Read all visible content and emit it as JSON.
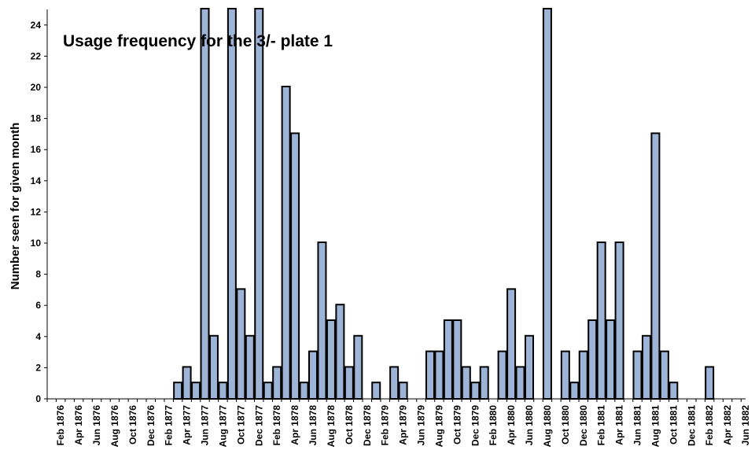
{
  "chart_data": {
    "type": "bar",
    "title": "Usage frequency for the 3/- plate 1",
    "xlabel": "",
    "ylabel": "Number seen for given month",
    "ylim": [
      0,
      25
    ],
    "yticks": [
      0,
      2,
      4,
      6,
      8,
      10,
      12,
      14,
      16,
      18,
      20,
      22,
      24
    ],
    "grid": false,
    "legend": "none",
    "bar_color": "#9db4d6",
    "months": [
      "Jan 1876",
      "Feb 1876",
      "Mar 1876",
      "Apr 1876",
      "May 1876",
      "Jun 1876",
      "Jul 1876",
      "Aug 1876",
      "Sep 1876",
      "Oct 1876",
      "Nov 1876",
      "Dec 1876",
      "Jan 1877",
      "Feb 1877",
      "Mar 1877",
      "Apr 1877",
      "May 1877",
      "Jun 1877",
      "Jul 1877",
      "Aug 1877",
      "Sep 1877",
      "Oct 1877",
      "Nov 1877",
      "Dec 1877",
      "Jan 1878",
      "Feb 1878",
      "Mar 1878",
      "Apr 1878",
      "May 1878",
      "Jun 1878",
      "Jul 1878",
      "Aug 1878",
      "Sep 1878",
      "Oct 1878",
      "Nov 1878",
      "Dec 1878",
      "Jan 1879",
      "Feb 1879",
      "Mar 1879",
      "Apr 1879",
      "May 1879",
      "Jun 1879",
      "Jul 1879",
      "Aug 1879",
      "Sep 1879",
      "Oct 1879",
      "Nov 1879",
      "Dec 1879",
      "Jan 1880",
      "Feb 1880",
      "Mar 1880",
      "Apr 1880",
      "May 1880",
      "Jun 1880",
      "Jul 1880",
      "Aug 1880",
      "Sep 1880",
      "Oct 1880",
      "Nov 1880",
      "Dec 1880",
      "Jan 1881",
      "Feb 1881",
      "Mar 1881",
      "Apr 1881",
      "May 1881",
      "Jun 1881",
      "Jul 1881",
      "Aug 1881",
      "Sep 1881",
      "Oct 1881",
      "Nov 1881",
      "Dec 1881",
      "Jan 1882",
      "Feb 1882",
      "Mar 1882",
      "Apr 1882",
      "May 1882",
      "Jun 1882"
    ],
    "values": [
      0,
      0,
      0,
      0,
      0,
      0,
      0,
      0,
      0,
      0,
      0,
      0,
      0,
      0,
      1,
      2,
      1,
      25,
      4,
      1,
      25,
      7,
      4,
      25,
      1,
      2,
      20,
      17,
      1,
      3,
      10,
      5,
      6,
      2,
      4,
      0,
      1,
      0,
      2,
      1,
      0,
      0,
      3,
      3,
      5,
      5,
      2,
      1,
      2,
      0,
      3,
      7,
      2,
      4,
      0,
      25,
      0,
      3,
      1,
      3,
      5,
      10,
      5,
      10,
      0,
      3,
      4,
      17,
      3,
      1,
      0,
      0,
      0,
      2,
      0,
      0,
      0,
      0
    ],
    "tick_labels": [
      "Feb 1876",
      "Apr 1876",
      "Jun 1876",
      "Aug 1876",
      "Oct 1876",
      "Dec 1876",
      "Feb 1877",
      "Apr 1877",
      "Jun 1877",
      "Aug 1877",
      "Oct 1877",
      "Dec 1877",
      "Feb 1878",
      "Apr 1878",
      "Jun 1878",
      "Aug 1878",
      "Oct 1878",
      "Dec 1878",
      "Feb 1879",
      "Apr 1879",
      "Jun 1879",
      "Aug 1879",
      "Oct 1879",
      "Dec 1879",
      "Feb 1880",
      "Apr 1880",
      "Jun 1880",
      "Aug 1880",
      "Oct 1880",
      "Dec 1880",
      "Feb 1881",
      "Apr 1881",
      "Jun 1881",
      "Aug 1881",
      "Oct 1881",
      "Dec 1881",
      "Feb 1882",
      "Apr 1882",
      "Jun 1882"
    ]
  }
}
